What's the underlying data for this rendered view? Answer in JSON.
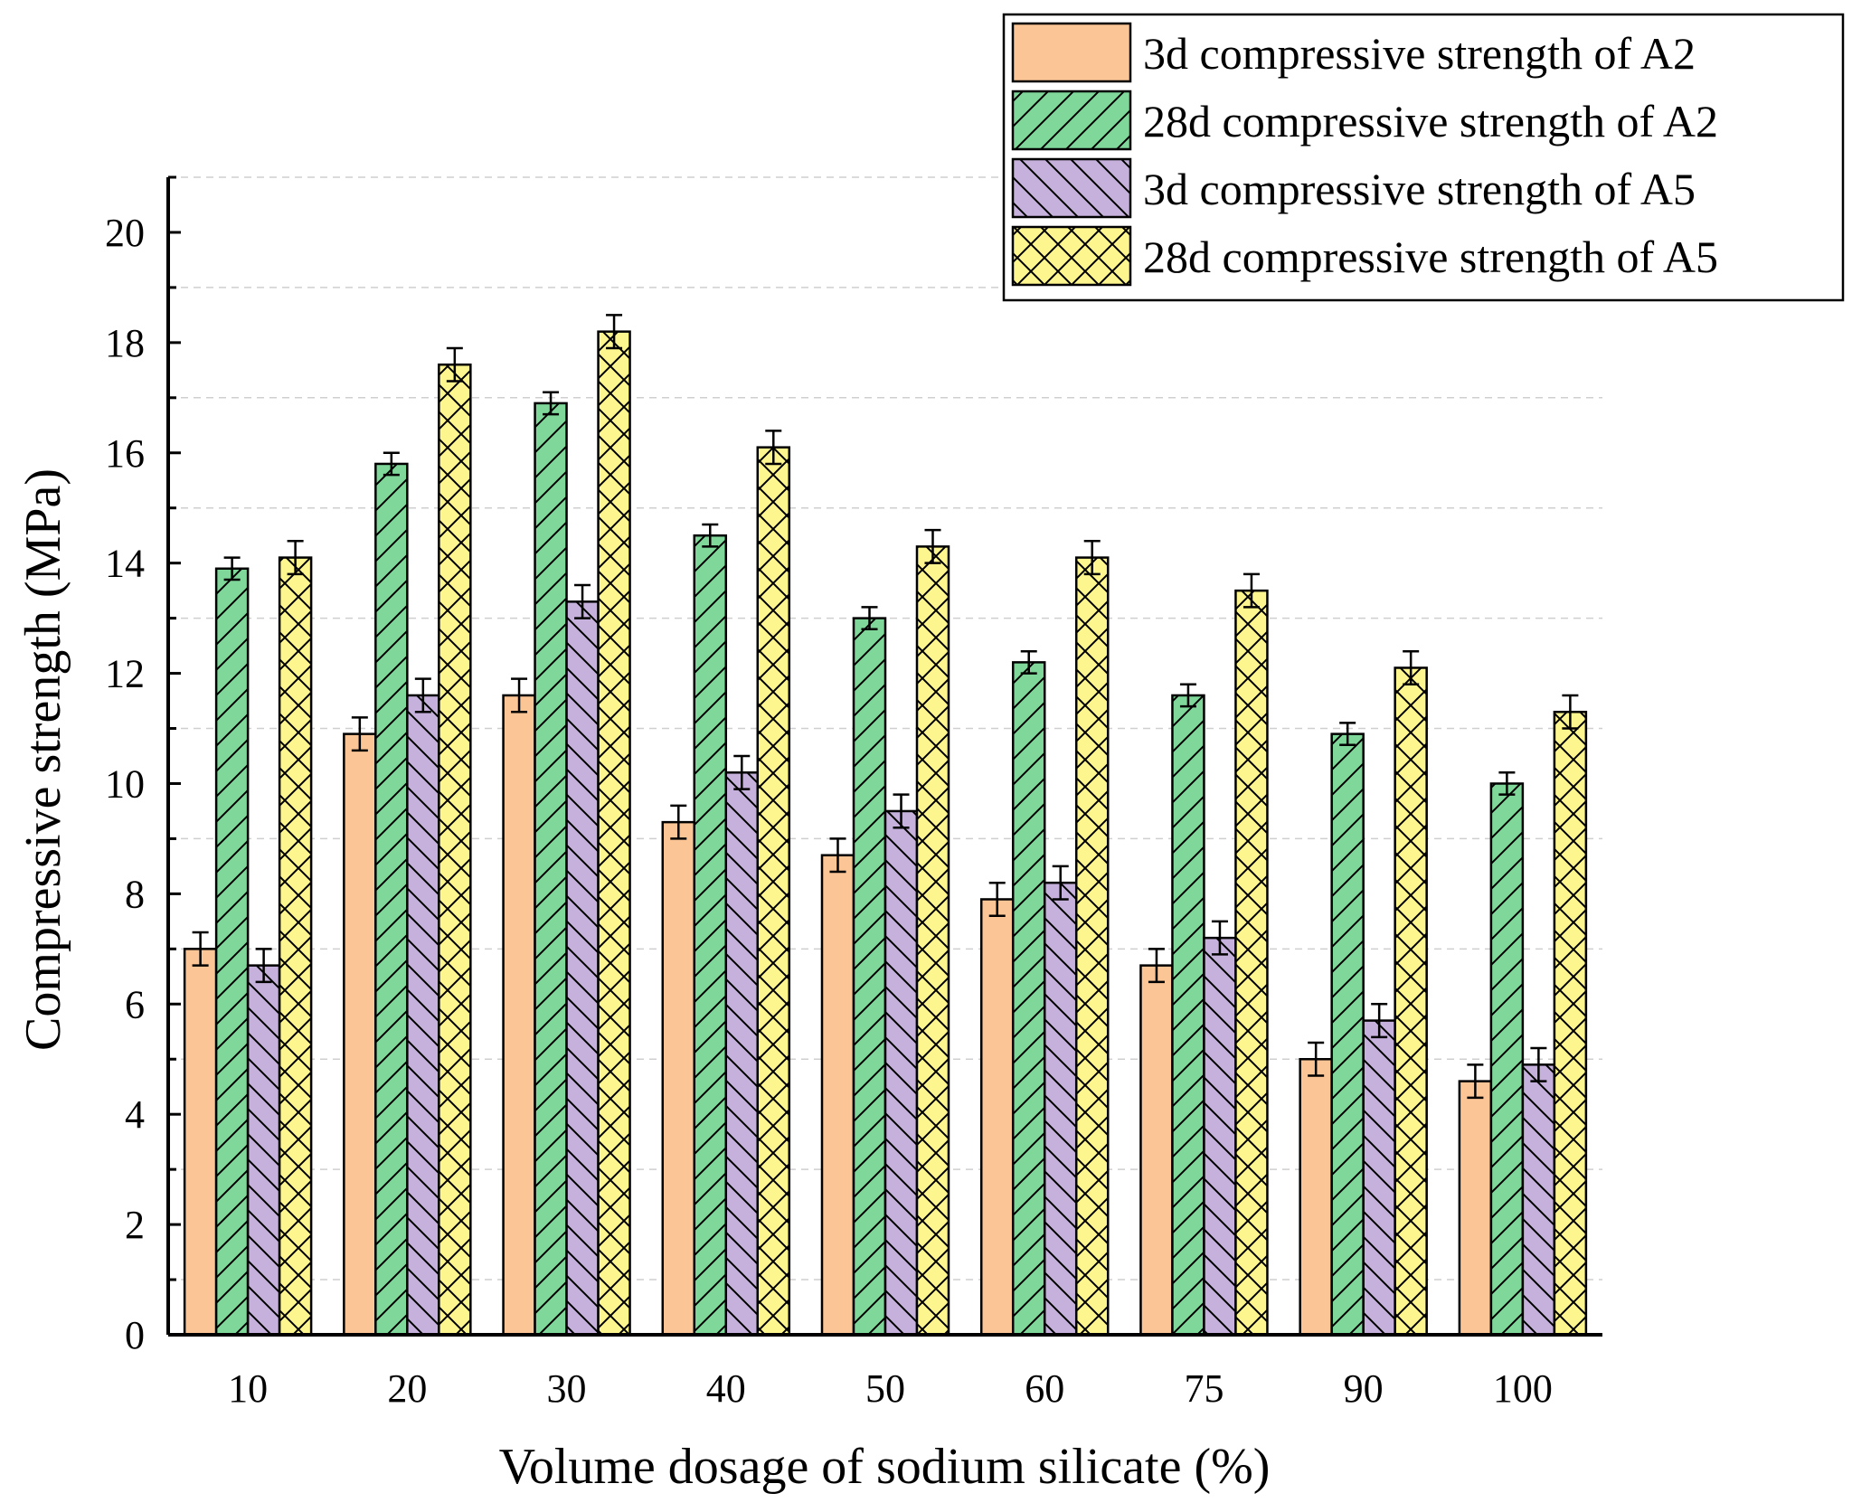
{
  "chart_data": {
    "type": "bar",
    "title": "",
    "xlabel": "Volume dosage of sodium silicate (%)",
    "ylabel": "Compressive strength (MPa)",
    "ylim": [
      0,
      21
    ],
    "yticks": [
      0,
      2,
      4,
      6,
      8,
      10,
      12,
      14,
      16,
      18,
      20
    ],
    "grid": true,
    "legend_position": "top-right",
    "categories": [
      "10",
      "20",
      "30",
      "40",
      "50",
      "60",
      "75",
      "90",
      "100"
    ],
    "series": [
      {
        "name": "3d compressive strength of A2",
        "color": "#fcc595",
        "pattern": "none",
        "values": [
          7.0,
          10.9,
          11.6,
          9.3,
          8.7,
          7.9,
          6.7,
          5.0,
          4.6
        ],
        "errors": [
          0.3,
          0.3,
          0.3,
          0.3,
          0.3,
          0.3,
          0.3,
          0.3,
          0.3
        ]
      },
      {
        "name": "28d compressive strength of A2",
        "color": "#7fd89a",
        "pattern": "forward-diagonal",
        "values": [
          13.9,
          15.8,
          16.9,
          14.5,
          13.0,
          12.2,
          11.6,
          10.9,
          10.0
        ],
        "errors": [
          0.2,
          0.2,
          0.2,
          0.2,
          0.2,
          0.2,
          0.2,
          0.2,
          0.2
        ]
      },
      {
        "name": "3d compressive strength of A5",
        "color": "#c5b1db",
        "pattern": "back-diagonal",
        "values": [
          6.7,
          11.6,
          13.3,
          10.2,
          9.5,
          8.2,
          7.2,
          5.7,
          4.9
        ],
        "errors": [
          0.3,
          0.3,
          0.3,
          0.3,
          0.3,
          0.3,
          0.3,
          0.3,
          0.3
        ]
      },
      {
        "name": "28d compressive strength of A5",
        "color": "#fdf58e",
        "pattern": "crosshatch",
        "values": [
          14.1,
          17.6,
          18.2,
          16.1,
          14.3,
          14.1,
          13.5,
          12.1,
          11.3
        ],
        "errors": [
          0.3,
          0.3,
          0.3,
          0.3,
          0.3,
          0.3,
          0.3,
          0.3,
          0.3
        ]
      }
    ]
  }
}
